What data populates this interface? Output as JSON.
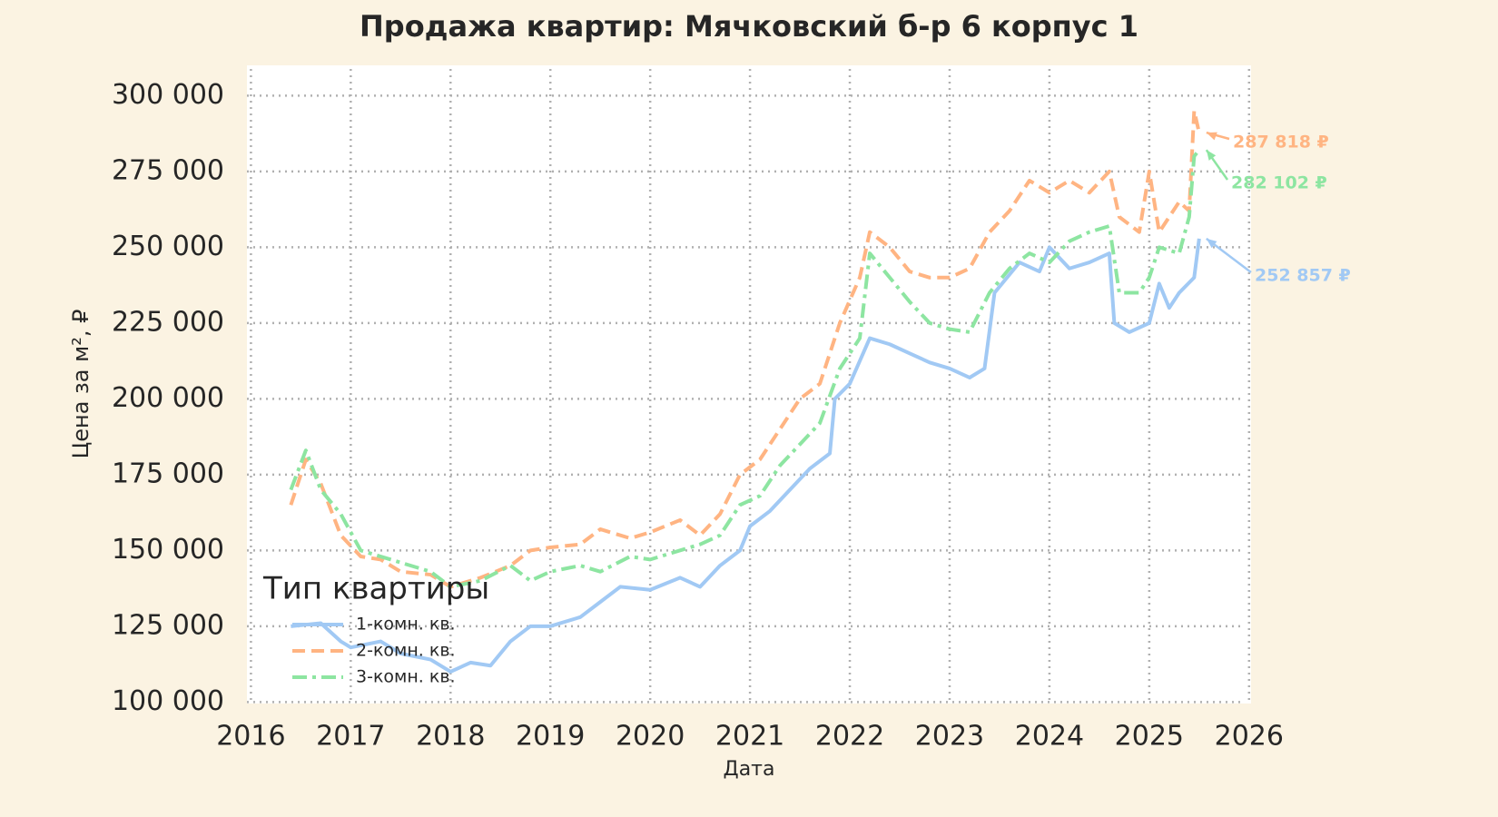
{
  "chart_data": {
    "type": "line",
    "title": "Продажа квартир: Мячковский б-р 6 корпус 1",
    "x_label": "Дата",
    "y_label": "Цена за м², ₽",
    "legend_title": "Тип квартиры",
    "legend_position": "lower left",
    "grid": true,
    "xlim": [
      2015.96,
      2026.02
    ],
    "xticks": [
      2016,
      2017,
      2018,
      2019,
      2020,
      2021,
      2022,
      2023,
      2024,
      2025,
      2026
    ],
    "ylim": [
      99500,
      310000
    ],
    "yticks": [
      {
        "value": 100000,
        "label": "100 000"
      },
      {
        "value": 125000,
        "label": "125 000"
      },
      {
        "value": 150000,
        "label": "150 000"
      },
      {
        "value": 175000,
        "label": "175 000"
      },
      {
        "value": 200000,
        "label": "200 000"
      },
      {
        "value": 225000,
        "label": "225 000"
      },
      {
        "value": 250000,
        "label": "250 000"
      },
      {
        "value": 275000,
        "label": "275 000"
      },
      {
        "value": 300000,
        "label": "300 000"
      }
    ],
    "series": [
      {
        "name": "1-комн. кв.",
        "color": "#a1c9f4",
        "dash": "solid",
        "x": [
          2016.4,
          2016.7,
          2016.9,
          2017.0,
          2017.3,
          2017.5,
          2017.8,
          2018.0,
          2018.2,
          2018.4,
          2018.6,
          2018.8,
          2019.0,
          2019.3,
          2019.5,
          2019.7,
          2020.0,
          2020.3,
          2020.5,
          2020.7,
          2020.9,
          2021.0,
          2021.2,
          2021.4,
          2021.6,
          2021.8,
          2021.85,
          2022.0,
          2022.2,
          2022.4,
          2022.6,
          2022.8,
          2023.0,
          2023.2,
          2023.35,
          2023.45,
          2023.7,
          2023.9,
          2024.0,
          2024.2,
          2024.4,
          2024.6,
          2024.65,
          2024.8,
          2025.0,
          2025.1,
          2025.2,
          2025.3,
          2025.45,
          2025.5
        ],
        "values": [
          125000,
          126000,
          120000,
          118000,
          120000,
          116000,
          114000,
          110000,
          113000,
          112000,
          120000,
          125000,
          125000,
          128000,
          133000,
          138000,
          137000,
          141000,
          138000,
          145000,
          150000,
          158000,
          163000,
          170000,
          177000,
          182000,
          200000,
          205000,
          220000,
          218000,
          215000,
          212000,
          210000,
          207000,
          210000,
          235000,
          245000,
          242000,
          250000,
          243000,
          245000,
          248000,
          225000,
          222000,
          225000,
          238000,
          230000,
          235000,
          240000,
          252857
        ]
      },
      {
        "name": "2-комн. кв.",
        "color": "#ffb482",
        "dash": "dashed",
        "x": [
          2016.4,
          2016.55,
          2016.7,
          2016.9,
          2017.1,
          2017.3,
          2017.5,
          2017.8,
          2018.0,
          2018.3,
          2018.6,
          2018.8,
          2019.0,
          2019.3,
          2019.5,
          2019.8,
          2020.0,
          2020.3,
          2020.5,
          2020.7,
          2020.9,
          2021.1,
          2021.3,
          2021.5,
          2021.7,
          2021.9,
          2022.1,
          2022.2,
          2022.4,
          2022.6,
          2022.8,
          2023.0,
          2023.2,
          2023.4,
          2023.6,
          2023.8,
          2024.0,
          2024.2,
          2024.4,
          2024.6,
          2024.7,
          2024.9,
          2025.0,
          2025.1,
          2025.3,
          2025.4,
          2025.45,
          2025.5
        ],
        "values": [
          165000,
          180000,
          172000,
          155000,
          148000,
          147000,
          143000,
          142000,
          138000,
          141000,
          145000,
          150000,
          151000,
          152000,
          157000,
          154000,
          156000,
          160000,
          155000,
          162000,
          175000,
          180000,
          190000,
          200000,
          205000,
          225000,
          240000,
          255000,
          250000,
          242000,
          240000,
          240000,
          243000,
          255000,
          262000,
          272000,
          268000,
          272000,
          268000,
          275000,
          260000,
          255000,
          275000,
          255000,
          265000,
          262000,
          295000,
          287818
        ]
      },
      {
        "name": "3-комн. кв.",
        "color": "#8de5a1",
        "dash": "dashdot",
        "x": [
          2016.4,
          2016.55,
          2016.7,
          2016.9,
          2017.1,
          2017.3,
          2017.5,
          2017.8,
          2018.0,
          2018.3,
          2018.6,
          2018.8,
          2019.0,
          2019.3,
          2019.5,
          2019.8,
          2020.0,
          2020.3,
          2020.5,
          2020.7,
          2020.9,
          2021.1,
          2021.3,
          2021.5,
          2021.7,
          2021.9,
          2022.1,
          2022.2,
          2022.4,
          2022.6,
          2022.8,
          2023.0,
          2023.2,
          2023.4,
          2023.6,
          2023.8,
          2024.0,
          2024.2,
          2024.4,
          2024.6,
          2024.7,
          2024.9,
          2025.0,
          2025.1,
          2025.3,
          2025.4,
          2025.45,
          2025.5
        ],
        "values": [
          170000,
          183000,
          170000,
          162000,
          150000,
          148000,
          146000,
          143000,
          138000,
          140000,
          145000,
          140000,
          143000,
          145000,
          143000,
          148000,
          147000,
          150000,
          152000,
          155000,
          165000,
          168000,
          178000,
          185000,
          192000,
          210000,
          220000,
          248000,
          240000,
          232000,
          225000,
          223000,
          222000,
          235000,
          243000,
          248000,
          245000,
          252000,
          255000,
          257000,
          235000,
          235000,
          240000,
          250000,
          248000,
          260000,
          280000,
          282102
        ]
      }
    ],
    "annotations": [
      {
        "text": "287 818 ₽",
        "x": 2025.5,
        "value": 287818,
        "color": "#ffb482"
      },
      {
        "text": "282 102 ₽",
        "x": 2025.5,
        "value": 282102,
        "color": "#8de5a1"
      },
      {
        "text": "252 857 ₽",
        "x": 2025.5,
        "value": 252857,
        "color": "#a1c9f4"
      }
    ]
  }
}
